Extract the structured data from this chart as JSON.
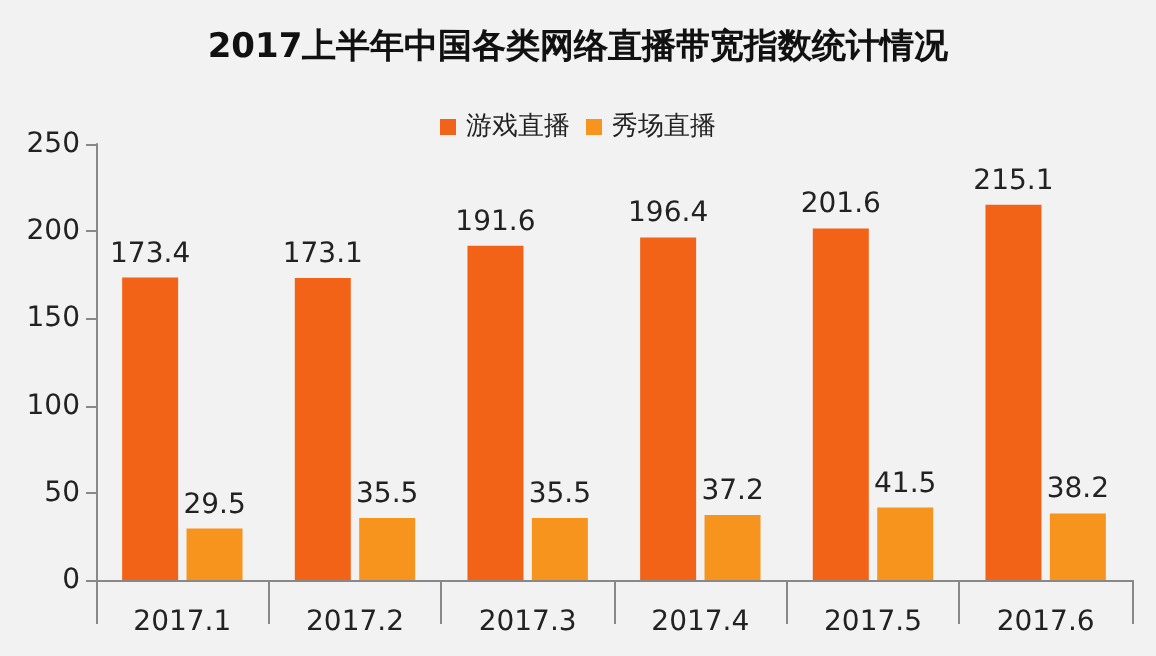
{
  "chart_data": {
    "type": "bar",
    "title": "2017上半年中国各类网络直播带宽指数统计情况",
    "categories": [
      "2017.1",
      "2017.2",
      "2017.3",
      "2017.4",
      "2017.5",
      "2017.6"
    ],
    "series": [
      {
        "name": "游戏直播",
        "color": "#f26318",
        "values": [
          173.4,
          173.1,
          191.6,
          196.4,
          201.6,
          215.1
        ]
      },
      {
        "name": "秀场直播",
        "color": "#f7941d",
        "values": [
          29.5,
          35.5,
          35.5,
          37.2,
          41.5,
          38.2
        ]
      }
    ],
    "ylim": [
      0,
      250
    ],
    "yticks": [
      0,
      50,
      100,
      150,
      200,
      250
    ],
    "grid": false,
    "legend": "top",
    "data_labels": true
  }
}
